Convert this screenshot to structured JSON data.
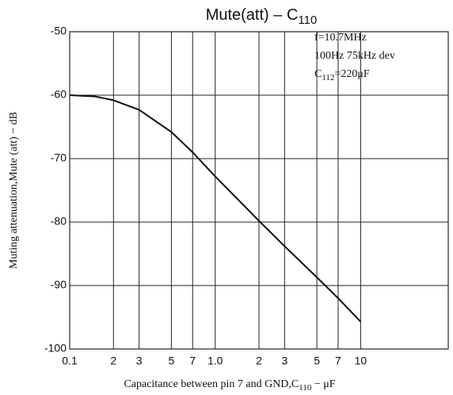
{
  "chart_data": {
    "type": "line",
    "title": {
      "text": "Mute(att)  –  C",
      "subscript": "110"
    },
    "annotations": [
      {
        "text": "f=10.7MHz"
      },
      {
        "text": "100Hz 75kHz dev"
      },
      {
        "text": "C",
        "subscript": "112",
        "rest": "=220μF"
      }
    ],
    "x_label": {
      "text": "Capacitance between pin 7 and GND,C",
      "subscript": "110",
      "rest": " − μF"
    },
    "y_label": "Muting attenuation,Mute (att) − dB",
    "x": [
      0.1,
      0.15,
      0.2,
      0.3,
      0.5,
      0.7,
      1.0,
      2,
      3,
      5,
      7,
      10
    ],
    "series": [
      {
        "color": "#111111",
        "values": [
          -60,
          -60.2,
          -60.8,
          -62.3,
          -65.8,
          -69,
          -72.8,
          -79.8,
          -83.8,
          -88.7,
          -92,
          -95.7
        ]
      }
    ],
    "log_x": true,
    "xlim": [
      0.1,
      40
    ],
    "ylim": [
      -100,
      -50
    ],
    "xticks": [
      0.1,
      {
        "value": 0.2,
        "label": "2"
      },
      {
        "value": 0.3,
        "label": "3"
      },
      {
        "value": 0.5,
        "label": "5"
      },
      {
        "value": 0.7,
        "label": "7"
      },
      {
        "value": 1,
        "label": "1.0"
      },
      {
        "value": 2,
        "label": "2"
      },
      {
        "value": 3,
        "label": "3"
      },
      {
        "value": 5,
        "label": "5"
      },
      {
        "value": 7,
        "label": "7"
      },
      10
    ],
    "yticks": [
      -100,
      -90,
      -80,
      -70,
      -60,
      -50
    ],
    "grid": true
  }
}
